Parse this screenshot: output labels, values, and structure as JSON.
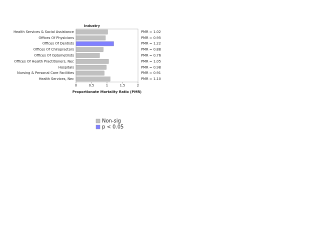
{
  "chart_data": {
    "type": "hbar",
    "title": "Industry",
    "x_label": "Proportionate Mortality Ratio (PMR)",
    "categories": [
      "Health Services & Social Assistance",
      "Offices Of Physicians",
      "Offices Of Dentists",
      "Offices Of Chiropractors",
      "Offices Of Optometrists",
      "Offices Of Health Practitioners, Nec",
      "Hospitals",
      "Nursing & Personal Care Facilities",
      "Health Services, Nec"
    ],
    "values": [
      1.02,
      0.95,
      1.22,
      0.88,
      0.76,
      1.05,
      0.98,
      0.91,
      1.1
    ],
    "value_labels": [
      "PMR = 1.02",
      "PMR = 0.95",
      "PMR = 1.22",
      "PMR = 0.88",
      "PMR = 0.76",
      "PMR = 1.05",
      "PMR = 0.98",
      "PMR = 0.91",
      "PMR = 1.10"
    ],
    "colors": [
      "#c0c0c0",
      "#c0c0c0",
      "#8080ff",
      "#c0c0c0",
      "#c0c0c0",
      "#c0c0c0",
      "#c0c0c0",
      "#c0c0c0",
      "#c0c0c0"
    ],
    "xlim": [
      0,
      2
    ],
    "xticks": [
      0,
      0.5,
      1,
      1.5,
      2
    ],
    "legend": [
      {
        "name": "Non-sig",
        "color": "#c0c0c0"
      },
      {
        "name": "p < 0.05",
        "color": "#8080ff"
      }
    ]
  }
}
